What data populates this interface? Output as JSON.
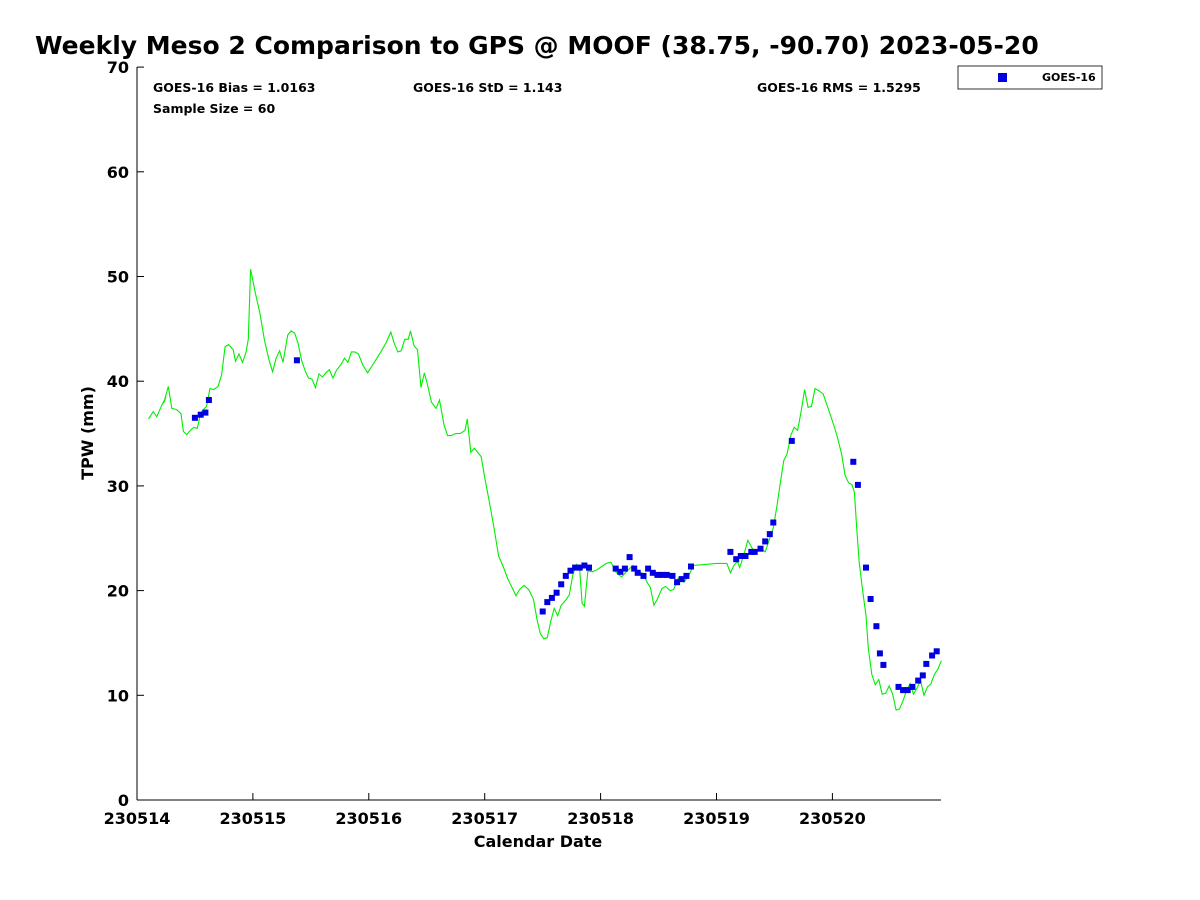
{
  "chart_data": {
    "type": "scatter",
    "title": "Weekly Meso 2 Comparison to GPS @ MOOF (38.75, -90.70) 2023-05-20",
    "xlabel": "Calendar Date",
    "ylabel": "TPW (mm)",
    "xlim": [
      0,
      6.97
    ],
    "ylim": [
      0,
      70
    ],
    "x_ticks": [
      0,
      1,
      2,
      3,
      4,
      5,
      6
    ],
    "x_tick_labels": [
      "230514",
      "230515",
      "230516",
      "230517",
      "230518",
      "230519",
      "230520"
    ],
    "y_ticks": [
      0,
      10,
      20,
      30,
      40,
      50,
      60,
      70
    ],
    "grid": false,
    "legend_position": "top-right, outside plot area",
    "stats": {
      "bias": "GOES-16 Bias = 1.0163",
      "std": "GOES-16 StD = 1.143",
      "rms": "GOES-16 RMS = 1.5295",
      "sample": "Sample Size = 60"
    },
    "series": [
      {
        "name": "GOES-16",
        "marker": "square",
        "color": "#0000e0",
        "points": [
          [
            0.5,
            36.5
          ],
          [
            0.55,
            36.8
          ],
          [
            0.59,
            37.0
          ],
          [
            0.62,
            38.2
          ],
          [
            1.38,
            42.0
          ],
          [
            3.5,
            18.0
          ],
          [
            3.54,
            18.9
          ],
          [
            3.58,
            19.3
          ],
          [
            3.62,
            19.8
          ],
          [
            3.66,
            20.6
          ],
          [
            3.7,
            21.4
          ],
          [
            3.74,
            21.9
          ],
          [
            3.78,
            22.2
          ],
          [
            3.82,
            22.2
          ],
          [
            3.86,
            22.4
          ],
          [
            3.9,
            22.2
          ],
          [
            4.13,
            22.1
          ],
          [
            4.17,
            21.8
          ],
          [
            4.21,
            22.1
          ],
          [
            4.25,
            23.2
          ],
          [
            4.29,
            22.1
          ],
          [
            4.32,
            21.7
          ],
          [
            4.37,
            21.4
          ],
          [
            4.41,
            22.1
          ],
          [
            4.45,
            21.7
          ],
          [
            4.49,
            21.5
          ],
          [
            4.53,
            21.5
          ],
          [
            4.57,
            21.5
          ],
          [
            4.62,
            21.4
          ],
          [
            4.66,
            20.8
          ],
          [
            4.7,
            21.1
          ],
          [
            4.74,
            21.4
          ],
          [
            4.78,
            22.3
          ],
          [
            5.12,
            23.7
          ],
          [
            5.17,
            23.0
          ],
          [
            5.21,
            23.3
          ],
          [
            5.25,
            23.3
          ],
          [
            5.3,
            23.7
          ],
          [
            5.33,
            23.7
          ],
          [
            5.38,
            24.0
          ],
          [
            5.42,
            24.7
          ],
          [
            5.46,
            25.4
          ],
          [
            5.49,
            26.5
          ],
          [
            5.65,
            34.3
          ],
          [
            6.18,
            32.3
          ],
          [
            6.22,
            30.1
          ],
          [
            6.29,
            22.2
          ],
          [
            6.33,
            19.2
          ],
          [
            6.38,
            16.6
          ],
          [
            6.41,
            14.0
          ],
          [
            6.44,
            12.9
          ],
          [
            6.57,
            10.8
          ],
          [
            6.61,
            10.5
          ],
          [
            6.65,
            10.5
          ],
          [
            6.69,
            10.8
          ],
          [
            6.74,
            11.4
          ],
          [
            6.78,
            11.9
          ],
          [
            6.81,
            13.0
          ],
          [
            6.86,
            13.8
          ],
          [
            6.9,
            14.2
          ]
        ]
      },
      {
        "name": "GPS",
        "type": "line",
        "color": "#00ee00",
        "points": [
          [
            0.1,
            36.4
          ],
          [
            0.14,
            37.1
          ],
          [
            0.17,
            36.6
          ],
          [
            0.21,
            37.6
          ],
          [
            0.25,
            38.5
          ],
          [
            0.24,
            38.2
          ],
          [
            0.23,
            37.9
          ],
          [
            0.27,
            39.5
          ],
          [
            0.3,
            37.4
          ],
          [
            0.34,
            37.3
          ],
          [
            0.38,
            36.9
          ],
          [
            0.4,
            35.2
          ],
          [
            0.43,
            34.9
          ],
          [
            0.46,
            35.3
          ],
          [
            0.49,
            35.6
          ],
          [
            0.52,
            35.5
          ],
          [
            0.55,
            37.0
          ],
          [
            0.6,
            37.6
          ],
          [
            0.63,
            39.3
          ],
          [
            0.66,
            39.2
          ],
          [
            0.7,
            39.5
          ],
          [
            0.73,
            40.6
          ],
          [
            0.76,
            43.3
          ],
          [
            0.79,
            43.5
          ],
          [
            0.83,
            43.0
          ],
          [
            0.85,
            41.9
          ],
          [
            0.88,
            42.6
          ],
          [
            0.91,
            41.8
          ],
          [
            0.94,
            42.7
          ],
          [
            0.96,
            44.0
          ],
          [
            0.98,
            50.7
          ],
          [
            1.02,
            48.5
          ],
          [
            1.06,
            46.5
          ],
          [
            1.1,
            43.9
          ],
          [
            1.14,
            42.0
          ],
          [
            1.17,
            40.9
          ],
          [
            1.2,
            42.2
          ],
          [
            1.23,
            42.9
          ],
          [
            1.26,
            41.8
          ],
          [
            1.3,
            44.4
          ],
          [
            1.33,
            44.8
          ],
          [
            1.36,
            44.6
          ],
          [
            1.39,
            43.6
          ],
          [
            1.42,
            42.0
          ],
          [
            1.45,
            41.0
          ],
          [
            1.48,
            40.3
          ],
          [
            1.51,
            40.2
          ],
          [
            1.54,
            39.4
          ],
          [
            1.57,
            40.7
          ],
          [
            1.6,
            40.4
          ],
          [
            1.63,
            40.8
          ],
          [
            1.66,
            41.1
          ],
          [
            1.69,
            40.3
          ],
          [
            1.72,
            41.0
          ],
          [
            1.76,
            41.6
          ],
          [
            1.79,
            42.2
          ],
          [
            1.82,
            41.8
          ],
          [
            1.85,
            42.8
          ],
          [
            1.88,
            42.8
          ],
          [
            1.91,
            42.6
          ],
          [
            1.95,
            41.5
          ],
          [
            1.99,
            40.8
          ],
          [
            2.03,
            41.5
          ],
          [
            2.07,
            42.2
          ],
          [
            2.11,
            42.9
          ],
          [
            2.15,
            43.7
          ],
          [
            2.19,
            44.7
          ],
          [
            2.22,
            43.6
          ],
          [
            2.25,
            42.8
          ],
          [
            2.28,
            42.9
          ],
          [
            2.31,
            44.0
          ],
          [
            2.34,
            44.0
          ],
          [
            2.36,
            44.8
          ],
          [
            2.39,
            43.4
          ],
          [
            2.42,
            43.0
          ],
          [
            2.45,
            39.4
          ],
          [
            2.48,
            40.8
          ],
          [
            2.51,
            39.5
          ],
          [
            2.54,
            38.0
          ],
          [
            2.58,
            37.4
          ],
          [
            2.61,
            38.2
          ],
          [
            2.65,
            35.8
          ],
          [
            2.68,
            34.8
          ],
          [
            2.71,
            34.8
          ],
          [
            2.75,
            35.0
          ],
          [
            2.79,
            35.0
          ],
          [
            2.83,
            35.3
          ],
          [
            2.85,
            36.4
          ],
          [
            2.88,
            33.2
          ],
          [
            2.91,
            33.6
          ],
          [
            2.94,
            33.2
          ],
          [
            2.97,
            32.8
          ],
          [
            3.0,
            30.8
          ],
          [
            3.04,
            28.5
          ],
          [
            3.08,
            26.0
          ],
          [
            3.12,
            23.3
          ],
          [
            3.16,
            22.3
          ],
          [
            3.2,
            21.1
          ],
          [
            3.24,
            20.2
          ],
          [
            3.27,
            19.5
          ],
          [
            3.3,
            20.1
          ],
          [
            3.34,
            20.5
          ],
          [
            3.38,
            20.1
          ],
          [
            3.42,
            19.2
          ],
          [
            3.45,
            17.3
          ],
          [
            3.48,
            15.9
          ],
          [
            3.51,
            15.4
          ],
          [
            3.54,
            15.5
          ],
          [
            3.57,
            17.1
          ],
          [
            3.6,
            18.3
          ],
          [
            3.63,
            17.6
          ],
          [
            3.66,
            18.6
          ],
          [
            3.7,
            19.1
          ],
          [
            3.73,
            19.6
          ],
          [
            3.76,
            21.5
          ],
          [
            3.79,
            22.5
          ],
          [
            3.82,
            22.0
          ],
          [
            3.84,
            18.8
          ],
          [
            3.86,
            18.5
          ],
          [
            3.89,
            21.9
          ],
          [
            3.93,
            21.8
          ],
          [
            3.97,
            22.0
          ],
          [
            4.01,
            22.3
          ],
          [
            4.05,
            22.6
          ],
          [
            4.09,
            22.7
          ],
          [
            4.13,
            21.8
          ],
          [
            4.18,
            21.3
          ],
          [
            4.23,
            21.9
          ],
          [
            4.28,
            22.4
          ],
          [
            4.33,
            21.8
          ],
          [
            4.37,
            21.6
          ],
          [
            4.4,
            20.8
          ],
          [
            4.43,
            20.3
          ],
          [
            4.46,
            18.6
          ],
          [
            4.49,
            19.2
          ],
          [
            4.53,
            20.2
          ],
          [
            4.56,
            20.4
          ],
          [
            4.6,
            20.0
          ],
          [
            4.63,
            20.1
          ],
          [
            4.67,
            21.2
          ],
          [
            4.72,
            20.8
          ],
          [
            4.76,
            21.4
          ],
          [
            4.8,
            22.4
          ],
          [
            4.9,
            22.5
          ],
          [
            5.0,
            22.6
          ],
          [
            5.09,
            22.6
          ],
          [
            5.12,
            21.7
          ],
          [
            5.15,
            22.4
          ],
          [
            5.18,
            22.8
          ],
          [
            5.2,
            22.2
          ],
          [
            5.23,
            23.2
          ],
          [
            5.27,
            24.8
          ],
          [
            5.3,
            24.2
          ],
          [
            5.33,
            23.6
          ],
          [
            5.37,
            24.1
          ],
          [
            5.42,
            23.7
          ],
          [
            5.45,
            24.7
          ],
          [
            5.49,
            26.0
          ],
          [
            5.52,
            28.0
          ],
          [
            5.55,
            30.2
          ],
          [
            5.58,
            32.4
          ],
          [
            5.61,
            33.1
          ],
          [
            5.64,
            34.8
          ],
          [
            5.67,
            35.6
          ],
          [
            5.7,
            35.3
          ],
          [
            5.73,
            37.1
          ],
          [
            5.76,
            39.2
          ],
          [
            5.79,
            37.5
          ],
          [
            5.82,
            37.6
          ],
          [
            5.85,
            39.3
          ],
          [
            5.88,
            39.1
          ],
          [
            5.92,
            38.8
          ],
          [
            5.96,
            37.5
          ],
          [
            6.0,
            36.2
          ],
          [
            6.04,
            34.8
          ],
          [
            6.08,
            33.0
          ],
          [
            6.11,
            31.0
          ],
          [
            6.14,
            30.3
          ],
          [
            6.17,
            30.1
          ],
          [
            6.19,
            29.4
          ],
          [
            6.21,
            26.0
          ],
          [
            6.23,
            22.8
          ],
          [
            6.26,
            20.1
          ],
          [
            6.29,
            17.6
          ],
          [
            6.31,
            14.5
          ],
          [
            6.34,
            12.0
          ],
          [
            6.37,
            11.0
          ],
          [
            6.4,
            11.5
          ],
          [
            6.43,
            10.1
          ],
          [
            6.46,
            10.2
          ],
          [
            6.49,
            10.9
          ],
          [
            6.52,
            10.1
          ],
          [
            6.55,
            8.6
          ],
          [
            6.58,
            8.7
          ],
          [
            6.61,
            9.5
          ],
          [
            6.64,
            10.5
          ],
          [
            6.67,
            11.1
          ],
          [
            6.7,
            10.1
          ],
          [
            6.73,
            10.7
          ],
          [
            6.76,
            11.4
          ],
          [
            6.79,
            10.0
          ],
          [
            6.82,
            10.8
          ],
          [
            6.85,
            11.1
          ],
          [
            6.88,
            12.0
          ],
          [
            6.91,
            12.5
          ],
          [
            6.94,
            13.3
          ]
        ]
      }
    ]
  }
}
